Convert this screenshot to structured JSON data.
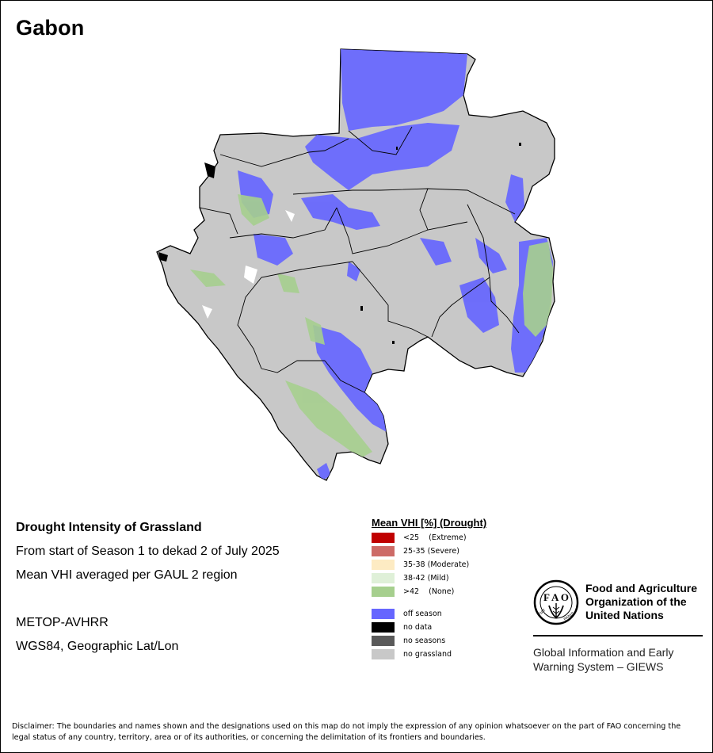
{
  "map_title": "Gabon",
  "info": {
    "heading": "Drought Intensity of Grassland",
    "period": "From start of Season 1 to dekad 2 of July 2025",
    "method": "Mean VHI averaged per GAUL 2 region",
    "sensor": "METOP-AVHRR",
    "projection": "WGS84, Geographic Lat/Lon"
  },
  "legend": {
    "title": "Mean VHI [%] (Drought)",
    "classes": [
      {
        "label": "<25    (Extreme)",
        "color": "#c00000"
      },
      {
        "label": "25-35 (Severe)",
        "color": "#cd6b67"
      },
      {
        "label": "35-38 (Moderate)",
        "color": "#fdebc3"
      },
      {
        "label": "38-42 (Mild)",
        "color": "#dff0d8"
      },
      {
        "label": ">42    (None)",
        "color": "#a6cf8e"
      }
    ],
    "other": [
      {
        "label": "off season",
        "color": "#6666ff"
      },
      {
        "label": "no data",
        "color": "#000000"
      },
      {
        "label": "no seasons",
        "color": "#5a5a5a"
      },
      {
        "label": "no grassland",
        "color": "#c8c8c8"
      }
    ]
  },
  "organization": {
    "name_lines": [
      "Food and Agriculture",
      "Organization of the",
      "United Nations"
    ],
    "system_lines": [
      "Global Information and Early",
      "Warning System – GIEWS"
    ]
  },
  "disclaimer": "Disclaimer: The boundaries and names shown and the designations used on this map do not imply the expression of any opinion whatsoever on the part of FAO concerning the legal status of any country, territory, area or of its authorities, or concerning the delimitation of its frontiers and boundaries.",
  "colors": {
    "land": "#c8c8c8",
    "off_season": "#6666ff",
    "none_drought": "#a6cf8e",
    "border": "#000000"
  }
}
